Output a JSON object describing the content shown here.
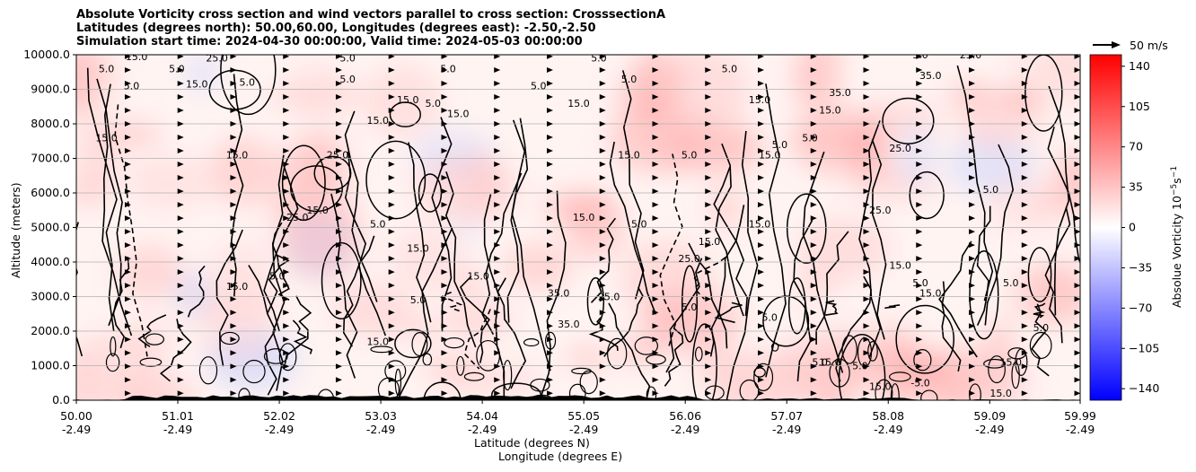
{
  "title": {
    "line1": "Absolute Vorticity cross section and wind vectors parallel to cross section: CrosssectionA",
    "line2": "Latitudes (degrees north): 50.00,60.00, Longitudes (degrees east): -2.50,-2.50",
    "line3": "Simulation start time: 2024-04-30 00:00:00, Valid time: 2024-05-03 00:00:00"
  },
  "chart_data": {
    "type": "heatmap",
    "ylabel": "Altitude (meters)",
    "xlabel_lat": "Latitude (degrees N)",
    "xlabel_lon": "Longitude (degrees E)",
    "ylim": [
      0,
      10000
    ],
    "y_ticks": [
      "0.0",
      "1000.0",
      "2000.0",
      "3000.0",
      "4000.0",
      "5000.0",
      "6000.0",
      "7000.0",
      "8000.0",
      "9000.0",
      "10000.0"
    ],
    "y_tick_values": [
      0,
      1000,
      2000,
      3000,
      4000,
      5000,
      6000,
      7000,
      8000,
      9000,
      10000
    ],
    "xlim": [
      50.0,
      59.99
    ],
    "x_ticks": [
      {
        "lat": "50.00",
        "lon": "-2.49",
        "value": 50.0
      },
      {
        "lat": "51.01",
        "lon": "-2.49",
        "value": 51.01
      },
      {
        "lat": "52.02",
        "lon": "-2.49",
        "value": 52.02
      },
      {
        "lat": "53.03",
        "lon": "-2.49",
        "value": 53.03
      },
      {
        "lat": "54.04",
        "lon": "-2.49",
        "value": 54.04
      },
      {
        "lat": "55.05",
        "lon": "-2.49",
        "value": 55.05
      },
      {
        "lat": "56.06",
        "lon": "-2.49",
        "value": 56.06
      },
      {
        "lat": "57.07",
        "lon": "-2.49",
        "value": 57.07
      },
      {
        "lat": "58.08",
        "lon": "-2.49",
        "value": 58.08
      },
      {
        "lat": "59.09",
        "lon": "-2.49",
        "value": 59.09
      },
      {
        "lat": "59.99",
        "lon": "-2.49",
        "value": 59.99
      }
    ],
    "grid": "horizontal",
    "colorbar": {
      "label": "Absolue Vorticity 10",
      "label_exp": "−5",
      "label_unit": "s",
      "label_unit_exp": "−1",
      "range": [
        -150,
        150
      ],
      "ticks": [
        "140",
        "105",
        "70",
        "35",
        "0",
        "−35",
        "−70",
        "−105",
        "−140"
      ],
      "tick_values": [
        140,
        105,
        70,
        35,
        0,
        -35,
        -70,
        -105,
        -140
      ],
      "colormap": "bwr",
      "color_low": "#0000ff",
      "color_mid": "#ffffff",
      "color_high": "#ff0000"
    },
    "quiver_key": {
      "label": "50 m/s",
      "speed": 50
    },
    "contour_levels": [
      -5.0,
      5.0,
      15.0,
      25.0,
      35.0
    ],
    "contour_labels": [
      {
        "text": "5.0",
        "lat": 50.3,
        "alt": 9500
      },
      {
        "text": "15.0",
        "lat": 50.3,
        "alt": 7500
      },
      {
        "text": "5.0",
        "lat": 50.55,
        "alt": 9000
      },
      {
        "text": "15.0",
        "lat": 50.6,
        "alt": 9850
      },
      {
        "text": "5.0",
        "lat": 51.0,
        "alt": 9500
      },
      {
        "text": "15.0",
        "lat": 51.2,
        "alt": 9050
      },
      {
        "text": "25.0",
        "lat": 51.4,
        "alt": 9800
      },
      {
        "text": "5.0",
        "lat": 51.7,
        "alt": 9100
      },
      {
        "text": "15.0",
        "lat": 51.6,
        "alt": 7000
      },
      {
        "text": "25.0",
        "lat": 52.6,
        "alt": 7000
      },
      {
        "text": "5.0",
        "lat": 52.7,
        "alt": 9200
      },
      {
        "text": "15.0",
        "lat": 53.0,
        "alt": 8000
      },
      {
        "text": "15.0",
        "lat": 52.4,
        "alt": 5400
      },
      {
        "text": "25.0",
        "lat": 52.2,
        "alt": 5200
      },
      {
        "text": "5.0",
        "lat": 52.7,
        "alt": 9800
      },
      {
        "text": "15.0",
        "lat": 53.3,
        "alt": 8600
      },
      {
        "text": "5.0",
        "lat": 53.55,
        "alt": 8500
      },
      {
        "text": "15.0",
        "lat": 53.8,
        "alt": 8200
      },
      {
        "text": "5.0",
        "lat": 53.7,
        "alt": 9500
      },
      {
        "text": "5.0",
        "lat": 53.0,
        "alt": 5000
      },
      {
        "text": "15.0",
        "lat": 53.4,
        "alt": 4300
      },
      {
        "text": "15.0",
        "lat": 51.6,
        "alt": 3200
      },
      {
        "text": "5.0",
        "lat": 52.0,
        "alt": 3500
      },
      {
        "text": "15.0",
        "lat": 53.0,
        "alt": 1600
      },
      {
        "text": "5.0",
        "lat": 53.4,
        "alt": 2800
      },
      {
        "text": "15.0",
        "lat": 54.0,
        "alt": 3500
      },
      {
        "text": "5.0",
        "lat": 54.6,
        "alt": 9000
      },
      {
        "text": "5.0",
        "lat": 55.5,
        "alt": 9200
      },
      {
        "text": "15.0",
        "lat": 55.0,
        "alt": 8500
      },
      {
        "text": "15.0",
        "lat": 55.5,
        "alt": 7000
      },
      {
        "text": "5.0",
        "lat": 55.2,
        "alt": 9800
      },
      {
        "text": "5.0",
        "lat": 55.6,
        "alt": 5000
      },
      {
        "text": "15.0",
        "lat": 55.05,
        "alt": 5200
      },
      {
        "text": "35.0",
        "lat": 54.8,
        "alt": 3000
      },
      {
        "text": "35.0",
        "lat": 54.9,
        "alt": 2100
      },
      {
        "text": "25.0",
        "lat": 55.3,
        "alt": 2900
      },
      {
        "text": "5.0",
        "lat": 56.1,
        "alt": 7000
      },
      {
        "text": "15.0",
        "lat": 56.3,
        "alt": 4500
      },
      {
        "text": "25.0",
        "lat": 56.1,
        "alt": 4000
      },
      {
        "text": "5.0",
        "lat": 56.1,
        "alt": 2600
      },
      {
        "text": "5.0",
        "lat": 56.5,
        "alt": 9500
      },
      {
        "text": "15.0",
        "lat": 56.8,
        "alt": 8600
      },
      {
        "text": "15.0",
        "lat": 56.9,
        "alt": 7000
      },
      {
        "text": "5.0",
        "lat": 57.0,
        "alt": 7300
      },
      {
        "text": "15.0",
        "lat": 56.8,
        "alt": 5000
      },
      {
        "text": "5.0",
        "lat": 56.9,
        "alt": 2300
      },
      {
        "text": "5.0",
        "lat": 57.3,
        "alt": 7500
      },
      {
        "text": "15.0",
        "lat": 57.5,
        "alt": 8300
      },
      {
        "text": "35.0",
        "lat": 57.6,
        "alt": 8800
      },
      {
        "text": "25.0",
        "lat": 58.2,
        "alt": 7200
      },
      {
        "text": "35.0",
        "lat": 58.5,
        "alt": 9300
      },
      {
        "text": "25.0",
        "lat": 58.0,
        "alt": 5400
      },
      {
        "text": "15.0",
        "lat": 58.2,
        "alt": 3800
      },
      {
        "text": "5.0",
        "lat": 58.4,
        "alt": 3300
      },
      {
        "text": "15.0",
        "lat": 58.5,
        "alt": 3000
      },
      {
        "text": "5.0",
        "lat": 59.1,
        "alt": 6000
      },
      {
        "text": "5.0",
        "lat": 59.3,
        "alt": 3300
      },
      {
        "text": "15.0",
        "lat": 59.3,
        "alt": 1000
      },
      {
        "text": "15.0",
        "lat": 59.2,
        "alt": 100
      },
      {
        "text": "5.0",
        "lat": 59.6,
        "alt": 2000
      },
      {
        "text": "5.0",
        "lat": 58.4,
        "alt": 9900
      },
      {
        "text": "25.0",
        "lat": 58.9,
        "alt": 9900
      },
      {
        "text": "15.0",
        "lat": 58.0,
        "alt": 300
      },
      {
        "text": "15.0",
        "lat": 57.5,
        "alt": 1000
      },
      {
        "text": "5.0",
        "lat": 57.8,
        "alt": 900
      },
      {
        "text": "-5.0",
        "lat": 58.4,
        "alt": 400
      },
      {
        "text": "5.0",
        "lat": 57.4,
        "alt": 1000
      }
    ]
  }
}
